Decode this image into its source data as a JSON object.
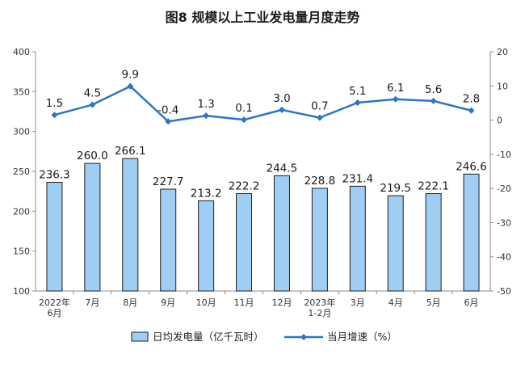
{
  "chart_data": {
    "type": "bar",
    "title": "图8  规模以上工业发电量月度走势",
    "categories": [
      [
        "2022年",
        "6月"
      ],
      [
        "7月"
      ],
      [
        "8月"
      ],
      [
        "9月"
      ],
      [
        "10月"
      ],
      [
        "11月"
      ],
      [
        "12月"
      ],
      [
        "2023年",
        "1-2月"
      ],
      [
        "3月"
      ],
      [
        "4月"
      ],
      [
        "5月"
      ],
      [
        "6月"
      ]
    ],
    "series": [
      {
        "name": "日均发电量（亿千瓦时）",
        "type": "bar",
        "axis": "left",
        "values": [
          236.3,
          260.0,
          266.1,
          227.7,
          213.2,
          222.2,
          244.5,
          228.8,
          231.4,
          219.5,
          222.1,
          246.6
        ],
        "labels": [
          "236.3",
          "260.0",
          "266.1",
          "227.7",
          "213.2",
          "222.2",
          "244.5",
          "228.8",
          "231.4",
          "219.5",
          "222.1",
          "246.6"
        ]
      },
      {
        "name": "当月增速（%）",
        "type": "line",
        "axis": "right",
        "values": [
          1.5,
          4.5,
          9.9,
          -0.4,
          1.3,
          0.1,
          3.0,
          0.7,
          5.1,
          6.1,
          5.6,
          2.8
        ],
        "labels": [
          "1.5",
          "4.5",
          "9.9",
          "-0.4",
          "1.3",
          "0.1",
          "3.0",
          "0.7",
          "5.1",
          "6.1",
          "5.6",
          "2.8"
        ]
      }
    ],
    "y_left": {
      "range": [
        100,
        400
      ],
      "ticks": [
        100,
        150,
        200,
        250,
        300,
        350,
        400
      ]
    },
    "y_right": {
      "range": [
        -50,
        20
      ],
      "ticks": [
        -50,
        -40,
        -30,
        -20,
        -10,
        0,
        10,
        20
      ]
    },
    "grid": false,
    "legend_position": "bottom",
    "colors": {
      "bar_fill": "#9fcdf3",
      "bar_stroke": "#1f1f1f",
      "line": "#2e74c9",
      "axis": "#8c8c8c"
    }
  }
}
